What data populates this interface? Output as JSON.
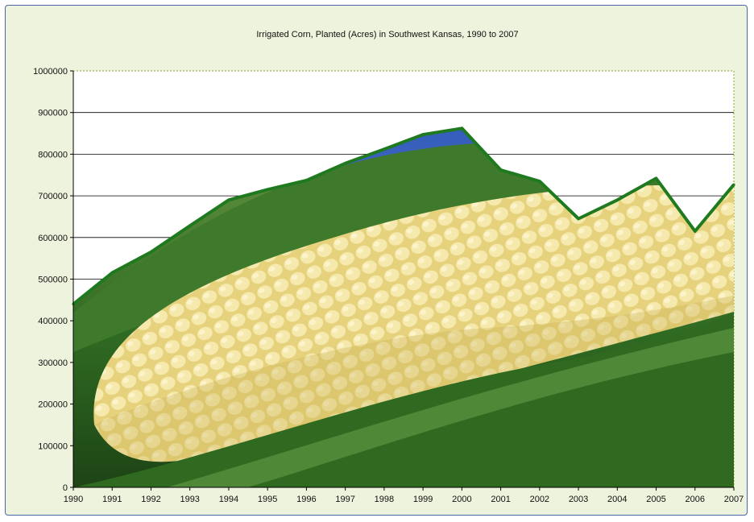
{
  "chart_data": {
    "type": "area",
    "title": "Irrigated Corn, Planted (Acres) in Southwest Kansas, 1990 to 2007",
    "xlabel": "",
    "ylabel": "",
    "categories": [
      "1990",
      "1991",
      "1992",
      "1993",
      "1994",
      "1995",
      "1996",
      "1997",
      "1998",
      "1999",
      "2000",
      "2001",
      "2002",
      "2003",
      "2004",
      "2005",
      "2006",
      "2007"
    ],
    "values": [
      440000,
      515000,
      565000,
      628000,
      690000,
      715000,
      737000,
      778000,
      812000,
      847000,
      862000,
      762000,
      735000,
      645000,
      690000,
      742000,
      615000,
      727000
    ],
    "ylim": [
      0,
      1000000
    ],
    "yticks": [
      "0",
      "100000",
      "200000",
      "300000",
      "400000",
      "500000",
      "600000",
      "700000",
      "800000",
      "900000",
      "1000000"
    ],
    "grid": true,
    "legend": "none",
    "fill": "corn-photo",
    "colors": {
      "line": "#1f7a1f",
      "frame_bg": "#eef3dd",
      "frame_border": "#4a66a8",
      "plot_bg": "#ffffff",
      "plot_border": "#999933",
      "grid": "#000000"
    }
  }
}
